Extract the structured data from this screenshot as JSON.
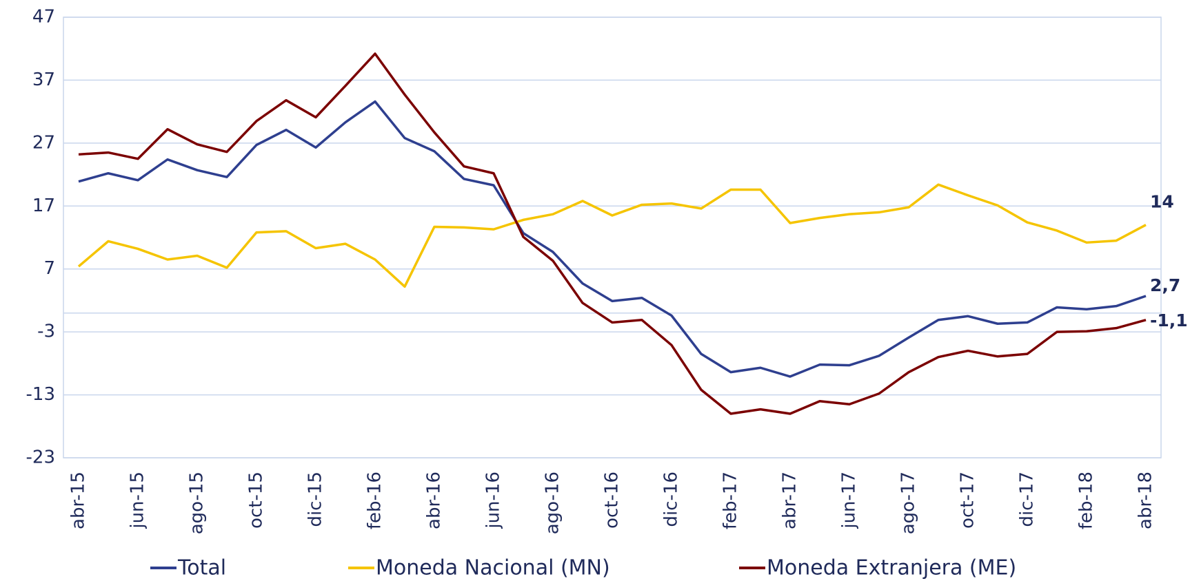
{
  "chart_data": {
    "type": "line",
    "categories": [
      "abr-15",
      null,
      "jun-15",
      null,
      "ago-15",
      null,
      "oct-15",
      null,
      "dic-15",
      null,
      "feb-16",
      null,
      "abr-16",
      null,
      "jun-16",
      null,
      "ago-16",
      null,
      "oct-16",
      null,
      "dic-16",
      null,
      "feb-17",
      null,
      "abr-17",
      null,
      "jun-17",
      null,
      "ago-17",
      null,
      "oct-17",
      null,
      "dic-17",
      null,
      "feb-18",
      null,
      "abr-18"
    ],
    "series": [
      {
        "name": "Total",
        "color": "#2e3f8f",
        "values": [
          20.9,
          22.2,
          21.1,
          24.4,
          22.7,
          21.6,
          26.7,
          29.1,
          26.3,
          30.3,
          33.6,
          27.8,
          25.7,
          21.3,
          20.3,
          12.7,
          9.7,
          4.7,
          1.9,
          2.4,
          -0.4,
          -6.5,
          -9.4,
          -8.7,
          -10.1,
          -8.2,
          -8.3,
          -6.8,
          -3.9,
          -1.1,
          -0.5,
          -1.7,
          -1.5,
          0.9,
          0.6,
          1.1,
          2.7
        ],
        "value_labels": [
          null,
          null,
          null,
          null,
          null,
          null,
          null,
          null,
          null,
          null,
          null,
          null,
          null,
          null,
          null,
          null,
          null,
          null,
          null,
          null,
          null,
          null,
          null,
          null,
          null,
          null,
          null,
          null,
          null,
          null,
          null,
          null,
          null,
          null,
          null,
          null,
          "2,7"
        ]
      },
      {
        "name": "Moneda Nacional (MN)",
        "color": "#f5c400",
        "values": [
          7.4,
          11.4,
          10.2,
          8.5,
          9.1,
          7.2,
          12.8,
          13.0,
          10.3,
          11.0,
          8.5,
          4.2,
          13.7,
          13.6,
          13.3,
          14.8,
          15.7,
          17.8,
          15.5,
          17.2,
          17.4,
          16.6,
          19.6,
          19.6,
          14.3,
          15.1,
          15.7,
          16.0,
          16.8,
          20.4,
          18.7,
          17.1,
          14.4,
          13.1,
          11.2,
          11.5,
          14
        ],
        "value_labels": [
          null,
          null,
          null,
          null,
          null,
          null,
          null,
          null,
          null,
          null,
          null,
          null,
          null,
          null,
          null,
          null,
          null,
          null,
          null,
          null,
          null,
          null,
          null,
          null,
          null,
          null,
          null,
          null,
          null,
          null,
          null,
          null,
          null,
          null,
          null,
          null,
          "14"
        ]
      },
      {
        "name": "Moneda Extranjera (ME)",
        "color": "#7b0000",
        "values": [
          25.2,
          25.5,
          24.5,
          29.2,
          26.8,
          25.6,
          30.5,
          33.8,
          31.1,
          36.1,
          41.2,
          34.7,
          28.7,
          23.3,
          22.2,
          12.1,
          8.3,
          1.6,
          -1.5,
          -1.1,
          -5.1,
          -12.2,
          -16.0,
          -15.3,
          -16.0,
          -14.0,
          -14.5,
          -12.8,
          -9.4,
          -7.0,
          -6.0,
          -6.9,
          -6.5,
          -3.0,
          -2.9,
          -2.4,
          -1.1
        ],
        "value_labels": [
          null,
          null,
          null,
          null,
          null,
          null,
          null,
          null,
          null,
          null,
          null,
          null,
          null,
          null,
          null,
          null,
          null,
          null,
          null,
          null,
          null,
          null,
          null,
          null,
          null,
          null,
          null,
          null,
          null,
          null,
          null,
          null,
          null,
          null,
          null,
          null,
          "-1,1"
        ]
      }
    ],
    "ylim": [
      -23,
      47
    ],
    "yticks": [
      -23,
      -13,
      -3,
      7,
      17,
      27,
      37,
      47
    ],
    "grid": true,
    "legend": "bottom"
  }
}
